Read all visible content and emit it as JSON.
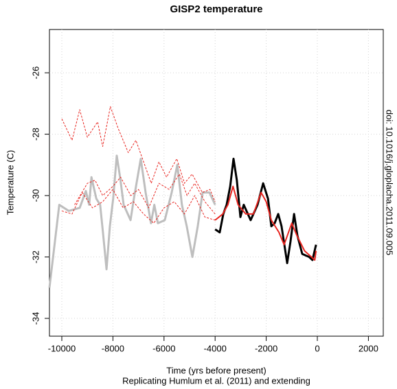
{
  "chart_data": {
    "type": "line",
    "title": "GISP2 temperature",
    "x_label": "Time (yrs before present)",
    "subtitle": "Replicating Humlum et al. (2011) and extending",
    "y_label": "Temperature (C)",
    "annotation": "doi: 10.1016/j.gloplacha.2011.09.005",
    "xlim": [
      -10484,
      2581
    ],
    "ylim": [
      -34.58,
      -24.59
    ],
    "xticks": [
      -10000,
      -8000,
      -6000,
      -4000,
      -2000,
      0,
      2000
    ],
    "yticks": [
      -34,
      -32,
      -30,
      -28,
      -26
    ],
    "grid": true,
    "series": [
      {
        "color": "#bebebe",
        "width": 3,
        "dashed": false,
        "x": [
          -10484,
          -10100,
          -9730,
          -9300,
          -9060,
          -8930,
          -8840,
          -8650,
          -8500,
          -8390,
          -8250,
          -8120,
          -7990,
          -7850,
          -7720,
          -7580,
          -7310,
          -7180,
          -6910,
          -6720,
          -6510,
          -6380,
          -6240,
          -5970,
          -5700,
          -5480,
          -5300,
          -5110,
          -4890,
          -4680,
          -4490,
          -4220,
          -4000
        ],
        "values": [
          -33.0,
          -30.3,
          -30.5,
          -30.4,
          -29.85,
          -30.3,
          -29.4,
          -30.1,
          -30.3,
          -31.2,
          -32.4,
          -31.0,
          -30.1,
          -28.7,
          -29.4,
          -30.3,
          -30.8,
          -30.1,
          -28.8,
          -29.9,
          -30.9,
          -30.3,
          -30.9,
          -30.8,
          -29.9,
          -29.0,
          -30.3,
          -31.0,
          -32.0,
          -31.0,
          -29.9,
          -29.9,
          -30.3
        ]
      },
      {
        "color": "#000000",
        "width": 3,
        "dashed": false,
        "x": [
          -4000,
          -3820,
          -3680,
          -3550,
          -3410,
          -3280,
          -3150,
          -3010,
          -2880,
          -2610,
          -2340,
          -2120,
          -1930,
          -1800,
          -1670,
          -1530,
          -1400,
          -1180,
          -1050,
          -910,
          -780,
          -590,
          -320,
          -190,
          -50
        ],
        "values": [
          -31.1,
          -31.2,
          -30.6,
          -30.3,
          -29.7,
          -28.8,
          -29.5,
          -30.7,
          -30.3,
          -30.8,
          -30.3,
          -29.6,
          -30.1,
          -31.0,
          -30.9,
          -30.6,
          -31.0,
          -32.2,
          -31.5,
          -30.6,
          -31.3,
          -31.9,
          -32.0,
          -32.1,
          -31.6
        ]
      },
      {
        "color": "#e8231e",
        "width": 2,
        "dashed": false,
        "x": [
          -4000,
          -3700,
          -3500,
          -3300,
          -3100,
          -2800,
          -2500,
          -2200,
          -2000,
          -1800,
          -1500,
          -1300,
          -1000,
          -800,
          -500,
          -100,
          -50
        ],
        "values": [
          -30.8,
          -30.6,
          -30.3,
          -29.7,
          -30.3,
          -30.6,
          -30.6,
          -29.9,
          -30.2,
          -30.8,
          -31.2,
          -31.6,
          -30.9,
          -31.3,
          -31.8,
          -32.1,
          -31.8
        ]
      },
      {
        "color": "#e8231e",
        "width": 1,
        "dashed": true,
        "x": [
          -10000,
          -9600,
          -9300,
          -9000,
          -8600,
          -8400,
          -8100,
          -7800,
          -7400,
          -7100,
          -6800,
          -6500,
          -6200,
          -5900,
          -5500,
          -5200,
          -4900,
          -4500,
          -4200,
          -4000
        ],
        "values": [
          -27.5,
          -28.2,
          -27.2,
          -28.1,
          -27.6,
          -28.4,
          -27.1,
          -27.8,
          -28.6,
          -28.2,
          -28.9,
          -29.6,
          -28.9,
          -29.4,
          -28.8,
          -29.6,
          -29.3,
          -29.9,
          -29.8,
          -30.2
        ]
      },
      {
        "color": "#e8231e",
        "width": 1,
        "dashed": true,
        "x": [
          -9500,
          -9000,
          -8700,
          -8400,
          -8000,
          -7700,
          -7300,
          -7000,
          -6600,
          -6200,
          -5800,
          -5400,
          -5100,
          -4800,
          -4400,
          -4000
        ],
        "values": [
          -30.3,
          -29.6,
          -29.5,
          -30.0,
          -29.7,
          -29.4,
          -30.0,
          -29.8,
          -30.4,
          -29.6,
          -29.8,
          -29.3,
          -30.0,
          -29.6,
          -30.2,
          -30.6
        ]
      },
      {
        "color": "#e8231e",
        "width": 1,
        "dashed": true,
        "x": [
          -10000,
          -9600,
          -9200,
          -8800,
          -8400,
          -8000,
          -7600,
          -7200,
          -6800,
          -6400,
          -6000,
          -5600,
          -5200,
          -4800,
          -4400,
          -4000
        ],
        "values": [
          -30.5,
          -30.6,
          -29.9,
          -30.4,
          -30.2,
          -29.8,
          -30.4,
          -30.2,
          -30.6,
          -30.9,
          -30.4,
          -30.2,
          -30.6,
          -30.0,
          -30.7,
          -30.8
        ]
      }
    ]
  }
}
